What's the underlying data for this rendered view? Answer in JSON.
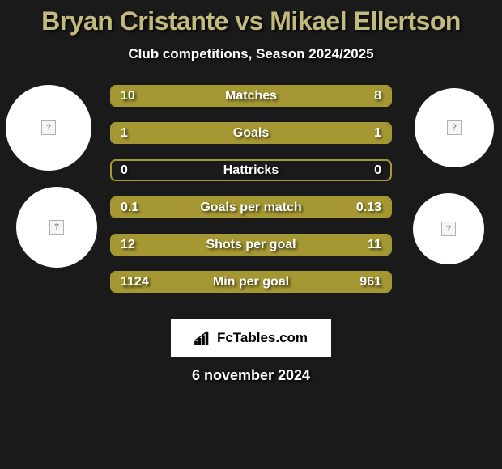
{
  "colors": {
    "background": "#1a1a1a",
    "accent": "#a59833",
    "title": "#c3bb7e",
    "text": "#ffffff",
    "brand_bg": "#ffffff",
    "brand_text": "#000000"
  },
  "header": {
    "title": "Bryan Cristante vs Mikael Ellertson",
    "subtitle": "Club competitions, Season 2024/2025"
  },
  "stats": [
    {
      "label": "Matches",
      "left_val": "10",
      "right_val": "8",
      "left_pct": 55,
      "right_pct": 45
    },
    {
      "label": "Goals",
      "left_val": "1",
      "right_val": "1",
      "left_pct": 50,
      "right_pct": 50
    },
    {
      "label": "Hattricks",
      "left_val": "0",
      "right_val": "0",
      "left_pct": 0,
      "right_pct": 0
    },
    {
      "label": "Goals per match",
      "left_val": "0.1",
      "right_val": "0.13",
      "left_pct": 43,
      "right_pct": 57
    },
    {
      "label": "Shots per goal",
      "left_val": "12",
      "right_val": "11",
      "left_pct": 52,
      "right_pct": 48
    },
    {
      "label": "Min per goal",
      "left_val": "1124",
      "right_val": "961",
      "left_pct": 54,
      "right_pct": 46
    }
  ],
  "brand": {
    "text": "FcTables.com"
  },
  "date": "6 november 2024"
}
